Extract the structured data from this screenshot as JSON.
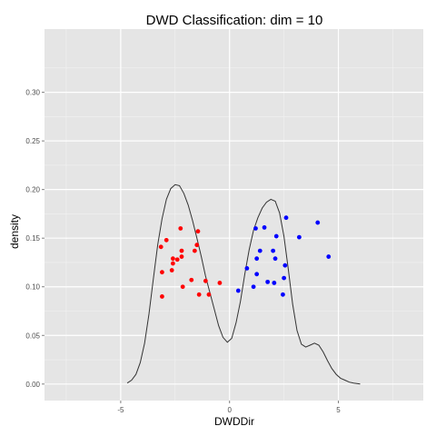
{
  "chart_data": {
    "type": "scatter",
    "title": "DWD Classification: dim = 10",
    "xlabel": "DWDDir",
    "ylabel": "density",
    "xlim": [
      -8.5,
      8.9
    ],
    "ylim": [
      -0.017,
      0.365
    ],
    "x_ticks": [
      -5,
      0,
      5
    ],
    "x_tick_labels": [
      "-5",
      "0",
      "5"
    ],
    "y_ticks": [
      0.0,
      0.05,
      0.1,
      0.15,
      0.2,
      0.25,
      0.3
    ],
    "y_tick_labels": [
      "0.00",
      "0.05",
      "0.10",
      "0.15",
      "0.20",
      "0.25",
      "0.30"
    ],
    "grid": true,
    "panel_background": "#e5e5e5",
    "grid_major_color": "#ffffff",
    "grid_minor_color": "#f2f2f2",
    "density_line_color": "#333333",
    "series": [
      {
        "color": "#ff0000",
        "points": [
          [
            -3.15,
            0.141
          ],
          [
            -2.9,
            0.148
          ],
          [
            -3.1,
            0.115
          ],
          [
            -3.1,
            0.09
          ],
          [
            -2.6,
            0.129
          ],
          [
            -2.6,
            0.124
          ],
          [
            -2.65,
            0.117
          ],
          [
            -2.4,
            0.128
          ],
          [
            -2.25,
            0.16
          ],
          [
            -2.2,
            0.137
          ],
          [
            -2.2,
            0.131
          ],
          [
            -2.15,
            0.1
          ],
          [
            -1.75,
            0.107
          ],
          [
            -1.6,
            0.137
          ],
          [
            -1.5,
            0.143
          ],
          [
            -1.45,
            0.157
          ],
          [
            -1.4,
            0.092
          ],
          [
            -1.1,
            0.106
          ],
          [
            -0.95,
            0.092
          ],
          [
            -0.45,
            0.104
          ]
        ]
      },
      {
        "color": "#0000ff",
        "points": [
          [
            0.4,
            0.096
          ],
          [
            0.8,
            0.119
          ],
          [
            1.1,
            0.1
          ],
          [
            1.2,
            0.16
          ],
          [
            1.25,
            0.129
          ],
          [
            1.25,
            0.113
          ],
          [
            1.4,
            0.137
          ],
          [
            1.6,
            0.161
          ],
          [
            1.75,
            0.105
          ],
          [
            2.0,
            0.137
          ],
          [
            2.05,
            0.104
          ],
          [
            2.1,
            0.129
          ],
          [
            2.15,
            0.152
          ],
          [
            2.45,
            0.092
          ],
          [
            2.5,
            0.109
          ],
          [
            2.55,
            0.122
          ],
          [
            2.6,
            0.171
          ],
          [
            3.2,
            0.151
          ],
          [
            4.05,
            0.166
          ],
          [
            4.55,
            0.131
          ]
        ]
      }
    ],
    "density": {
      "x": [
        -4.7,
        -4.5,
        -4.3,
        -4.1,
        -3.9,
        -3.7,
        -3.5,
        -3.3,
        -3.1,
        -2.9,
        -2.7,
        -2.5,
        -2.3,
        -2.1,
        -1.9,
        -1.7,
        -1.5,
        -1.3,
        -1.1,
        -0.9,
        -0.7,
        -0.5,
        -0.3,
        -0.1,
        0.1,
        0.3,
        0.5,
        0.7,
        0.9,
        1.1,
        1.3,
        1.5,
        1.7,
        1.9,
        2.1,
        2.3,
        2.5,
        2.7,
        2.9,
        3.1,
        3.3,
        3.5,
        3.7,
        3.9,
        4.1,
        4.3,
        4.5,
        4.7,
        4.9,
        5.1,
        5.3,
        5.5,
        5.7,
        6.0
      ],
      "y": [
        0.001,
        0.004,
        0.01,
        0.022,
        0.042,
        0.072,
        0.108,
        0.143,
        0.17,
        0.19,
        0.201,
        0.205,
        0.204,
        0.196,
        0.184,
        0.168,
        0.15,
        0.131,
        0.111,
        0.094,
        0.077,
        0.06,
        0.048,
        0.043,
        0.047,
        0.063,
        0.085,
        0.113,
        0.138,
        0.158,
        0.171,
        0.181,
        0.187,
        0.19,
        0.188,
        0.176,
        0.152,
        0.118,
        0.082,
        0.055,
        0.041,
        0.038,
        0.04,
        0.042,
        0.04,
        0.033,
        0.024,
        0.016,
        0.01,
        0.006,
        0.004,
        0.002,
        0.001,
        0.0
      ]
    }
  }
}
